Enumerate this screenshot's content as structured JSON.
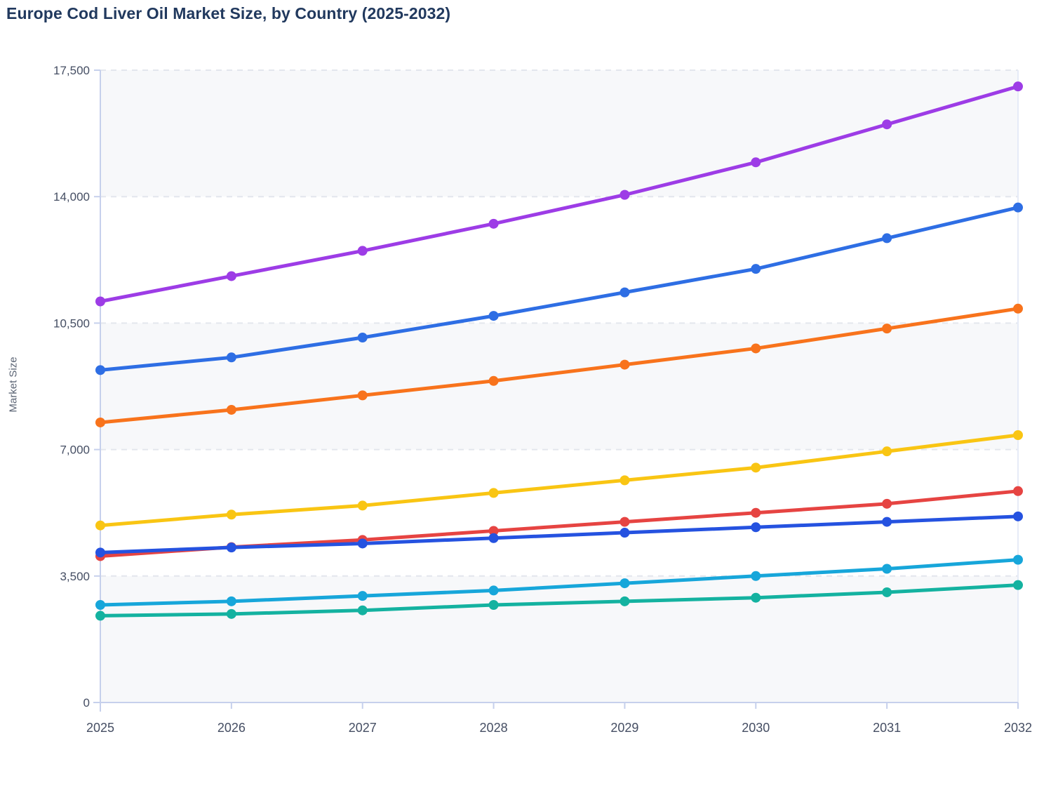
{
  "page": {
    "kind": "line-chart-figure"
  },
  "chart_data": {
    "type": "line",
    "title": "Europe Cod Liver Oil Market Size, by Country (2025-2032)",
    "xlabel": "",
    "ylabel": "Market Size",
    "x": [
      2025,
      2026,
      2027,
      2028,
      2029,
      2030,
      2031,
      2032
    ],
    "x_tick_labels": [
      "2025",
      "2026",
      "2027",
      "2028",
      "2029",
      "2030",
      "2031",
      "2032"
    ],
    "ylim": [
      0,
      17500
    ],
    "yticks": [
      0,
      3500,
      7000,
      10500,
      14000,
      17500
    ],
    "ytick_labels": [
      "0",
      "3,500",
      "7,000",
      "10,500",
      "14,000",
      "17,500"
    ],
    "grid": "horizontal-dashed",
    "legend_position": "none",
    "markers": true,
    "series": [
      {
        "id": "purple",
        "name": "Series (purple)",
        "color": "#9d3ce6",
        "values": [
          11100,
          11800,
          12500,
          13250,
          14050,
          14950,
          16000,
          17050
        ]
      },
      {
        "id": "blue",
        "name": "Series (blue)",
        "color": "#2e6ee4",
        "values": [
          9200,
          9550,
          10100,
          10700,
          11350,
          12000,
          12850,
          13700
        ]
      },
      {
        "id": "orange",
        "name": "Series (orange)",
        "color": "#f8731c",
        "values": [
          7750,
          8100,
          8500,
          8900,
          9350,
          9800,
          10350,
          10900
        ]
      },
      {
        "id": "yellow",
        "name": "Series (yellow)",
        "color": "#f9c513",
        "values": [
          4900,
          5200,
          5450,
          5800,
          6150,
          6500,
          6950,
          7400
        ]
      },
      {
        "id": "red",
        "name": "Series (red)",
        "color": "#e64442",
        "values": [
          4050,
          4300,
          4500,
          4750,
          5000,
          5250,
          5500,
          5850
        ]
      },
      {
        "id": "royal-blue",
        "name": "Series (royal blue)",
        "color": "#2552e0",
        "values": [
          4150,
          4290,
          4400,
          4550,
          4700,
          4850,
          5000,
          5150
        ]
      },
      {
        "id": "cyan",
        "name": "Series (cyan)",
        "color": "#17a6da",
        "values": [
          2700,
          2800,
          2950,
          3100,
          3300,
          3500,
          3700,
          3950
        ]
      },
      {
        "id": "teal",
        "name": "Series (teal)",
        "color": "#14b2a0",
        "values": [
          2400,
          2450,
          2550,
          2700,
          2800,
          2900,
          3050,
          3250
        ]
      }
    ]
  },
  "style": {
    "band_fill": "#f7f8fa",
    "gridline_color": "#e3e6ed",
    "axis_line_color": "#c6d0ec",
    "plot_right_border_color": "#e6ebf7",
    "tick_label_color": "#454e63",
    "title_color": "#21395e"
  }
}
